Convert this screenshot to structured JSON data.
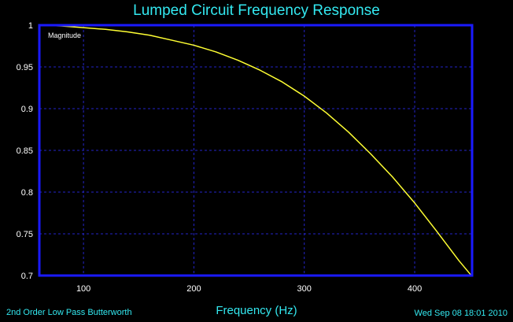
{
  "chart_data": {
    "type": "line",
    "title": "Lumped Circuit Frequency Response",
    "xlabel": "Frequency (Hz)",
    "ylabel": "",
    "xlim": [
      60,
      452
    ],
    "ylim": [
      0.7,
      1.0
    ],
    "xticks": [
      100,
      200,
      300,
      400
    ],
    "yticks": [
      0.7,
      0.75,
      0.8,
      0.85,
      0.9,
      0.95,
      1
    ],
    "ytick_labels": [
      "0.7",
      "0.75",
      "0.8",
      "0.85",
      "0.9",
      "0.95",
      "1"
    ],
    "grid": true,
    "legend": "top-left",
    "series": [
      {
        "name": "Magnitude",
        "color": "#ffff33",
        "x": [
          60,
          80,
          100,
          120,
          140,
          160,
          180,
          200,
          220,
          240,
          260,
          280,
          300,
          320,
          340,
          360,
          380,
          400,
          420,
          440,
          452
        ],
        "y": [
          1.0,
          0.999,
          0.997,
          0.995,
          0.992,
          0.988,
          0.982,
          0.976,
          0.968,
          0.958,
          0.946,
          0.932,
          0.915,
          0.895,
          0.872,
          0.846,
          0.818,
          0.787,
          0.753,
          0.718,
          0.699
        ]
      }
    ]
  },
  "footer": {
    "left": "2nd Order Low Pass Butterworth",
    "right": "Wed Sep 08 18:01 2010"
  },
  "colors": {
    "background": "#000000",
    "frame": "#1a1aff",
    "grid": "#2424c8",
    "text_cyan": "#33e8f0",
    "text_white": "#ffffff",
    "curve": "#ffff33"
  }
}
